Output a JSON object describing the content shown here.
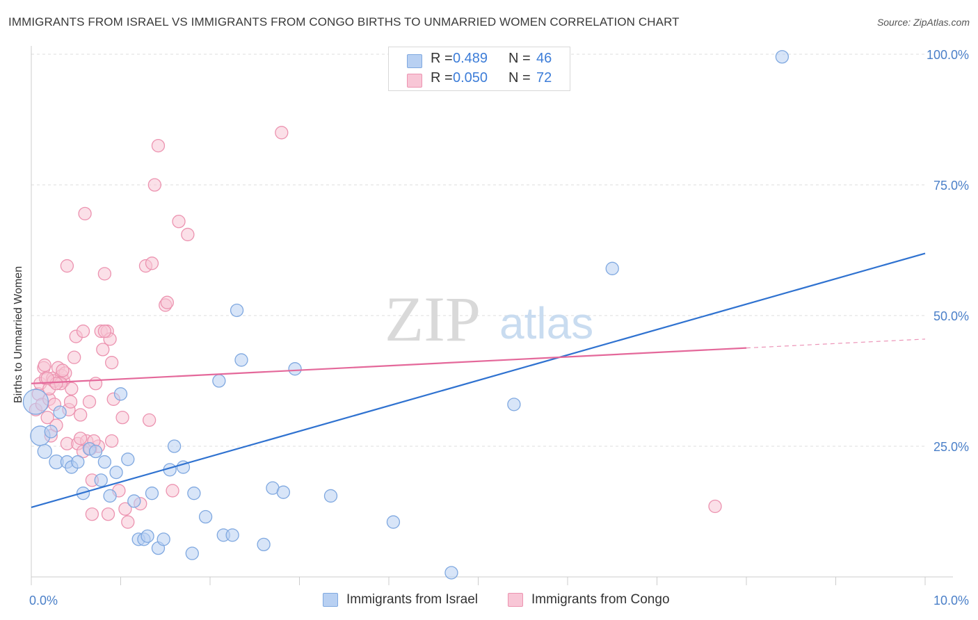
{
  "title": "IMMIGRANTS FROM ISRAEL VS IMMIGRANTS FROM CONGO BIRTHS TO UNMARRIED WOMEN CORRELATION CHART",
  "source": "Source: ZipAtlas.com",
  "watermark": {
    "zip": "ZIP",
    "atlas": "atlas"
  },
  "stats": {
    "israel": {
      "r_label": "R =",
      "r_value": "0.489",
      "n_label": "N =",
      "n_value": "46"
    },
    "congo": {
      "r_label": "R =",
      "r_value": "0.050",
      "n_label": "N =",
      "n_value": "72"
    }
  },
  "legend": {
    "israel": "Immigrants from Israel",
    "congo": "Immigrants from Congo"
  },
  "colors": {
    "israel_fill": "#b8d0f2",
    "israel_stroke": "#7fa8e0",
    "israel_line": "#2f72d0",
    "congo_fill": "#f8c6d6",
    "congo_stroke": "#ec93b0",
    "congo_line": "#e4689a",
    "tick_text": "#4a7fc8",
    "grid": "#dcdcdc"
  },
  "chart_data": {
    "type": "scatter",
    "ylabel": "Births to Unmarried Women",
    "x_ticks": [
      "0.0%",
      "10.0%"
    ],
    "y_ticks": [
      "25.0%",
      "50.0%",
      "75.0%",
      "100.0%"
    ],
    "xlim": [
      0,
      10
    ],
    "ylim": [
      0,
      100
    ],
    "grid": "horizontal dashed",
    "series": [
      {
        "name": "Immigrants from Israel",
        "trend": {
          "x": [
            0,
            10
          ],
          "y": [
            13.3,
            61.9
          ]
        },
        "points": [
          [
            0.05,
            33.5,
            18
          ],
          [
            0.1,
            27,
            14
          ],
          [
            0.15,
            24,
            10
          ],
          [
            0.22,
            27.8,
            9
          ],
          [
            0.28,
            22,
            10
          ],
          [
            0.32,
            31.5,
            9
          ],
          [
            0.4,
            22,
            9
          ],
          [
            0.45,
            21,
            9
          ],
          [
            0.52,
            22,
            9
          ],
          [
            0.58,
            16,
            9
          ],
          [
            0.65,
            24.5,
            9
          ],
          [
            0.72,
            24,
            9
          ],
          [
            0.78,
            18.5,
            9
          ],
          [
            0.82,
            22,
            9
          ],
          [
            0.88,
            15.5,
            9
          ],
          [
            0.95,
            20,
            9
          ],
          [
            1.0,
            35,
            9
          ],
          [
            1.08,
            22.5,
            9
          ],
          [
            1.15,
            14.5,
            9
          ],
          [
            1.2,
            7.2,
            9
          ],
          [
            1.26,
            7.2,
            9
          ],
          [
            1.3,
            7.8,
            9
          ],
          [
            1.35,
            16,
            9
          ],
          [
            1.42,
            5.5,
            9
          ],
          [
            1.48,
            7.2,
            9
          ],
          [
            1.55,
            20.5,
            9
          ],
          [
            1.6,
            25,
            9
          ],
          [
            1.7,
            21,
            9
          ],
          [
            1.8,
            4.5,
            9
          ],
          [
            1.82,
            16,
            9
          ],
          [
            1.95,
            11.5,
            9
          ],
          [
            2.1,
            37.5,
            9
          ],
          [
            2.15,
            8,
            9
          ],
          [
            2.25,
            8,
            9
          ],
          [
            2.3,
            51,
            9
          ],
          [
            2.35,
            41.5,
            9
          ],
          [
            2.6,
            6.2,
            9
          ],
          [
            2.7,
            17,
            9
          ],
          [
            2.82,
            16.2,
            9
          ],
          [
            2.95,
            39.8,
            9
          ],
          [
            3.35,
            15.5,
            9
          ],
          [
            4.05,
            10.5,
            9
          ],
          [
            4.7,
            0.8,
            9
          ],
          [
            5.4,
            33,
            9
          ],
          [
            6.5,
            59,
            9
          ],
          [
            8.4,
            99.5,
            9
          ]
        ]
      },
      {
        "name": "Immigrants from Congo",
        "trend": {
          "x": [
            0,
            8.0
          ],
          "y": [
            37.0,
            43.8
          ]
        },
        "trend_dashed": {
          "x": [
            8.0,
            10
          ],
          "y": [
            43.8,
            45.5
          ]
        },
        "points": [
          [
            0.05,
            32,
            9
          ],
          [
            0.08,
            35,
            9
          ],
          [
            0.1,
            37,
            9
          ],
          [
            0.12,
            33,
            9
          ],
          [
            0.14,
            40,
            9
          ],
          [
            0.16,
            38,
            9
          ],
          [
            0.18,
            30.5,
            9
          ],
          [
            0.2,
            34,
            9
          ],
          [
            0.22,
            27,
            9
          ],
          [
            0.24,
            38,
            9
          ],
          [
            0.26,
            33,
            9
          ],
          [
            0.28,
            29,
            9
          ],
          [
            0.3,
            40,
            9
          ],
          [
            0.32,
            37.5,
            9
          ],
          [
            0.34,
            38.5,
            9
          ],
          [
            0.36,
            37.5,
            9
          ],
          [
            0.38,
            39,
            9
          ],
          [
            0.4,
            25.5,
            9
          ],
          [
            0.4,
            59.5,
            9
          ],
          [
            0.42,
            32,
            9
          ],
          [
            0.44,
            33.5,
            9
          ],
          [
            0.45,
            36,
            9
          ],
          [
            0.48,
            42,
            9
          ],
          [
            0.5,
            46,
            9
          ],
          [
            0.52,
            25.5,
            9
          ],
          [
            0.55,
            31,
            9
          ],
          [
            0.58,
            47,
            9
          ],
          [
            0.6,
            69.5,
            9
          ],
          [
            0.62,
            26,
            9
          ],
          [
            0.65,
            33.5,
            9
          ],
          [
            0.68,
            18.5,
            9
          ],
          [
            0.68,
            12,
            9
          ],
          [
            0.72,
            37,
            9
          ],
          [
            0.75,
            25,
            9
          ],
          [
            0.78,
            47,
            9
          ],
          [
            0.8,
            43.5,
            9
          ],
          [
            0.82,
            58,
            9
          ],
          [
            0.85,
            47,
            9
          ],
          [
            0.86,
            12,
            9
          ],
          [
            0.88,
            45.5,
            9
          ],
          [
            0.9,
            41,
            9
          ],
          [
            0.92,
            34,
            9
          ],
          [
            0.9,
            26,
            9
          ],
          [
            0.98,
            16.5,
            9
          ],
          [
            1.02,
            30.5,
            9
          ],
          [
            1.05,
            13,
            9
          ],
          [
            1.08,
            10.5,
            9
          ],
          [
            1.22,
            14,
            9
          ],
          [
            1.28,
            59.5,
            9
          ],
          [
            1.32,
            30,
            9
          ],
          [
            1.35,
            60,
            9
          ],
          [
            1.38,
            75,
            9
          ],
          [
            1.42,
            82.5,
            9
          ],
          [
            1.5,
            52,
            9
          ],
          [
            1.52,
            52.5,
            9
          ],
          [
            1.58,
            16.5,
            9
          ],
          [
            1.65,
            68,
            9
          ],
          [
            1.75,
            65.5,
            9
          ],
          [
            2.8,
            85,
            9
          ],
          [
            7.65,
            13.5,
            9
          ],
          [
            0.15,
            40.5,
            9
          ],
          [
            0.2,
            36,
            9
          ],
          [
            0.25,
            37.5,
            9
          ],
          [
            0.33,
            37,
            9
          ],
          [
            0.55,
            26.5,
            9
          ],
          [
            0.58,
            24,
            9
          ],
          [
            0.66,
            24.5,
            9
          ],
          [
            0.7,
            26,
            9
          ],
          [
            0.82,
            47,
            9
          ],
          [
            0.28,
            37,
            9
          ],
          [
            0.18,
            38,
            9
          ],
          [
            0.35,
            39.5,
            9
          ]
        ]
      }
    ]
  }
}
